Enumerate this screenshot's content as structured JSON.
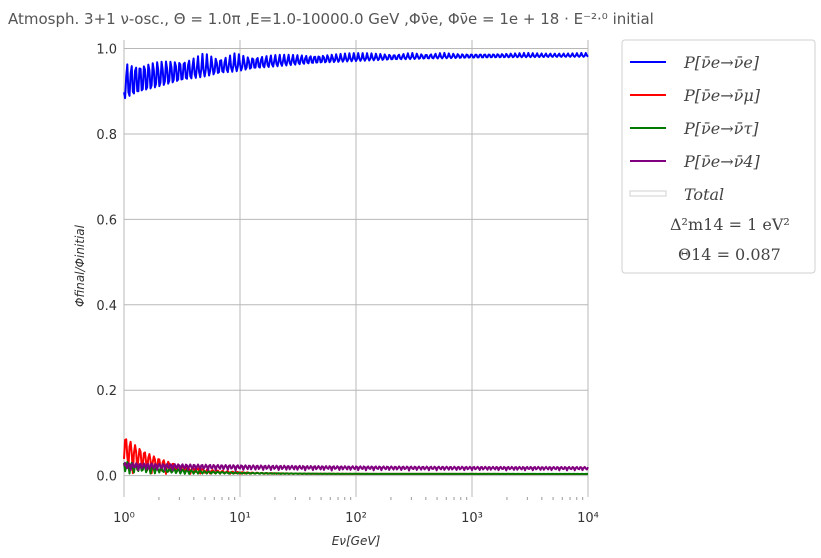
{
  "chart_data": {
    "type": "line",
    "title": "Atmosph. 3+1 ν-osc., Θ = 1.0π ,E=1.0-10000.0 GeV ,Φν̄e, Φν̄e = 1e + 18 · E⁻²·⁰ initial",
    "xlabel": "Eν[GeV]",
    "ylabel": "Φfinal/Φinitial",
    "xscale": "log",
    "xlim": [
      1,
      10000
    ],
    "ylim": [
      -0.05,
      1.02
    ],
    "grid": true,
    "legend_position": "outside-right",
    "x_ticks": [
      "10⁰",
      "10¹",
      "10²",
      "10³",
      "10⁴"
    ],
    "y_ticks": [
      "0.0",
      "0.2",
      "0.4",
      "0.6",
      "0.8",
      "1.0"
    ],
    "series": [
      {
        "name": "P[ν̄e→ν̄e]",
        "color": "#0000ff",
        "baseline": 0.99,
        "amp_start": 0.11,
        "amp_end": 0.008,
        "decay": 1.1,
        "freq": 26,
        "phase": 1.0
      },
      {
        "name": "P[ν̄e→ν̄μ]",
        "color": "#ff0000",
        "baseline": 0.004,
        "amp_start": 0.09,
        "amp_end": 0.0,
        "decay": 3.0,
        "freq": 24,
        "phase": 0.4
      },
      {
        "name": "P[ν̄e→ν̄τ]",
        "color": "#007a00",
        "baseline": 0.004,
        "amp_start": 0.03,
        "amp_end": 0.0,
        "decay": 2.2,
        "freq": 27,
        "phase": 2.1
      },
      {
        "name": "P[ν̄e→ν̄4]",
        "color": "#800080",
        "baseline": 0.012,
        "amp_start": 0.018,
        "amp_end": 0.008,
        "decay": 0.8,
        "freq": 30,
        "phase": 0.7
      },
      {
        "name": "Total",
        "color": "#d9d9d9"
      }
    ],
    "annotation": {
      "line1": "Δ²m14 = 1 eV²",
      "line2": "Θ14 = 0.087"
    }
  }
}
